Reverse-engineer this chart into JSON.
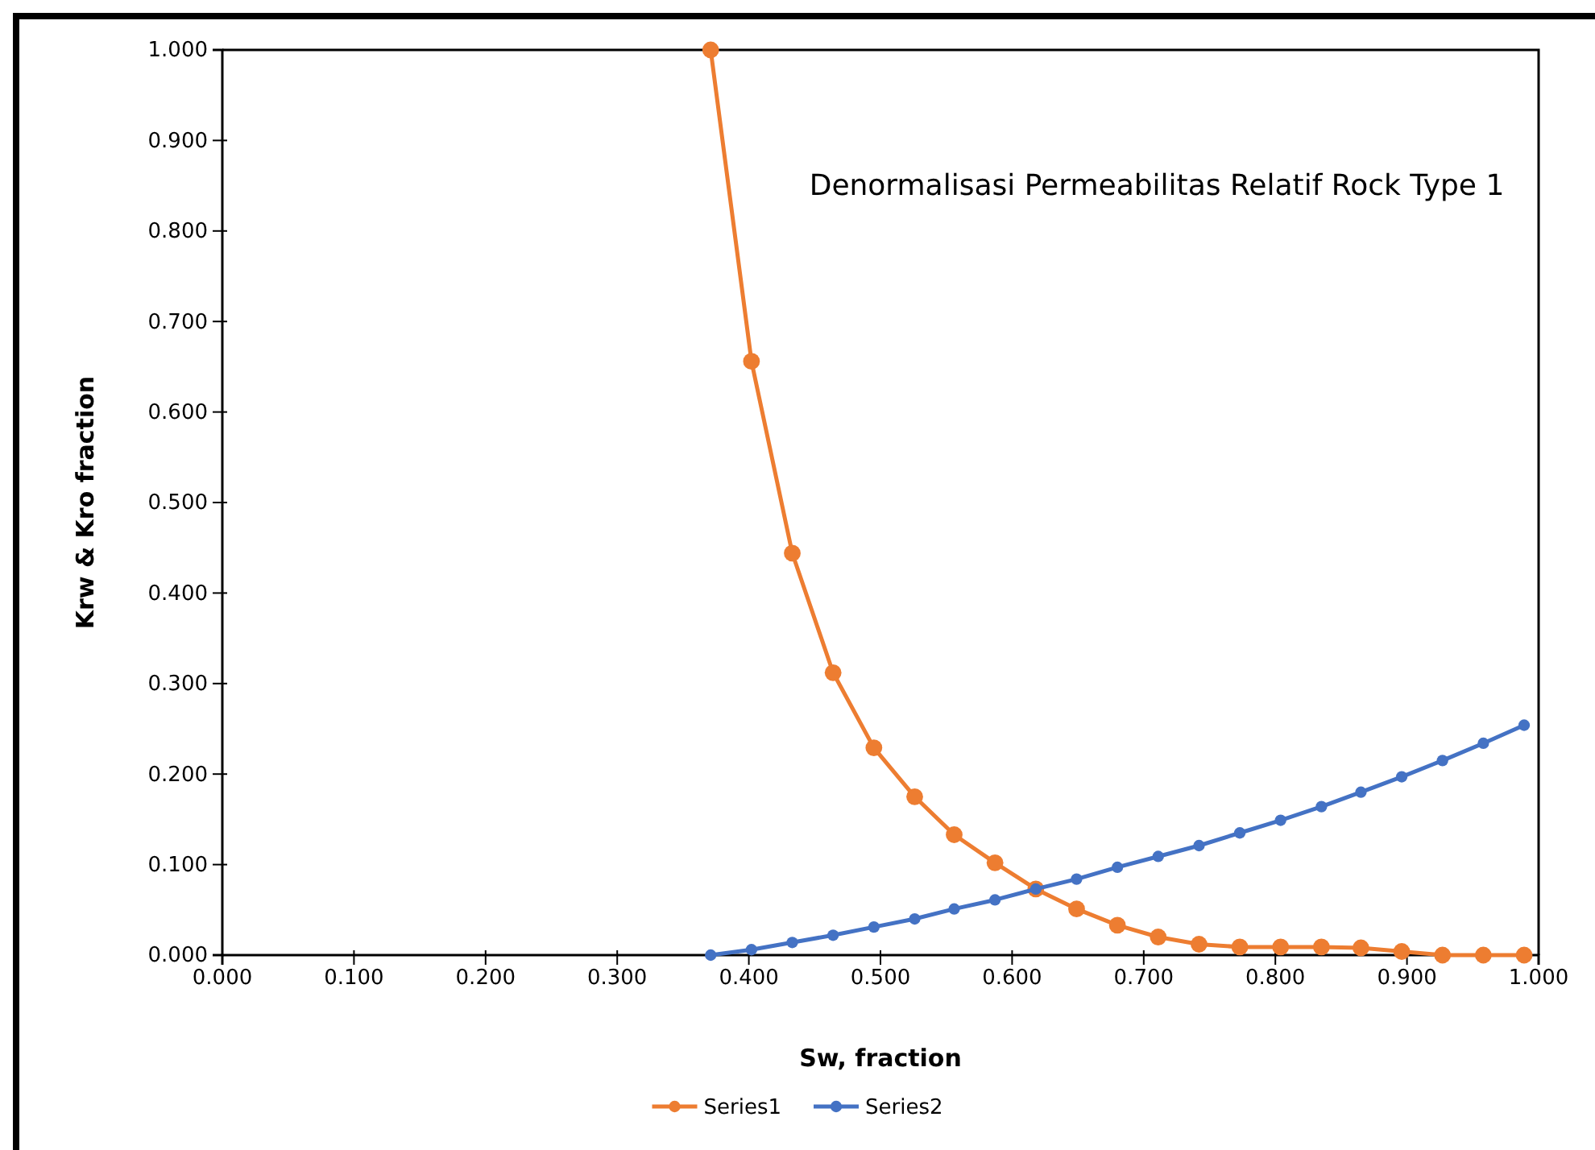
{
  "chart_data": {
    "type": "line",
    "title": "Denormalisasi Permeabilitas Relatif Rock Type 1",
    "xlabel": "Sw, fraction",
    "ylabel": "Krw & Kro fraction",
    "x": [
      0.371,
      0.402,
      0.433,
      0.464,
      0.495,
      0.526,
      0.556,
      0.587,
      0.618,
      0.649,
      0.68,
      0.711,
      0.742,
      0.773,
      0.804,
      0.835,
      0.865,
      0.896,
      0.927,
      0.958,
      0.989
    ],
    "series": [
      {
        "name": "Series1",
        "color": "#ed7d31",
        "values": [
          1.0,
          0.656,
          0.444,
          0.312,
          0.229,
          0.175,
          0.133,
          0.102,
          0.073,
          0.051,
          0.033,
          0.02,
          0.012,
          0.009,
          0.009,
          0.009,
          0.008,
          0.004,
          0.0,
          0.0,
          0.0
        ]
      },
      {
        "name": "Series2",
        "color": "#4472c4",
        "values": [
          0.0,
          0.006,
          0.014,
          0.022,
          0.031,
          0.04,
          0.051,
          0.061,
          0.073,
          0.084,
          0.097,
          0.109,
          0.121,
          0.135,
          0.149,
          0.164,
          0.18,
          0.197,
          0.215,
          0.234,
          0.254
        ]
      }
    ],
    "xlim": [
      0,
      1
    ],
    "ylim": [
      0,
      1
    ],
    "xticks": [
      {
        "value": 0,
        "label": "0.000"
      },
      {
        "value": 0.1,
        "label": "0.100"
      },
      {
        "value": 0.2,
        "label": "0.200"
      },
      {
        "value": 0.3,
        "label": "0.300"
      },
      {
        "value": 0.4,
        "label": "0.400"
      },
      {
        "value": 0.5,
        "label": "0.500"
      },
      {
        "value": 0.6,
        "label": "0.600"
      },
      {
        "value": 0.7,
        "label": "0.700"
      },
      {
        "value": 0.8,
        "label": "0.800"
      },
      {
        "value": 0.9,
        "label": "0.900"
      },
      {
        "value": 1,
        "label": "1.000"
      }
    ],
    "yticks": [
      {
        "value": 0,
        "label": "0.000"
      },
      {
        "value": 0.1,
        "label": "0.100"
      },
      {
        "value": 0.2,
        "label": "0.200"
      },
      {
        "value": 0.3,
        "label": "0.300"
      },
      {
        "value": 0.4,
        "label": "0.400"
      },
      {
        "value": 0.5,
        "label": "0.500"
      },
      {
        "value": 0.6,
        "label": "0.600"
      },
      {
        "value": 0.7,
        "label": "0.700"
      },
      {
        "value": 0.8,
        "label": "0.800"
      },
      {
        "value": 0.9,
        "label": "0.900"
      },
      {
        "value": 1,
        "label": "1.000"
      }
    ],
    "grid": false,
    "legend": "bottom",
    "marker": "circle",
    "line_style": "solid"
  }
}
